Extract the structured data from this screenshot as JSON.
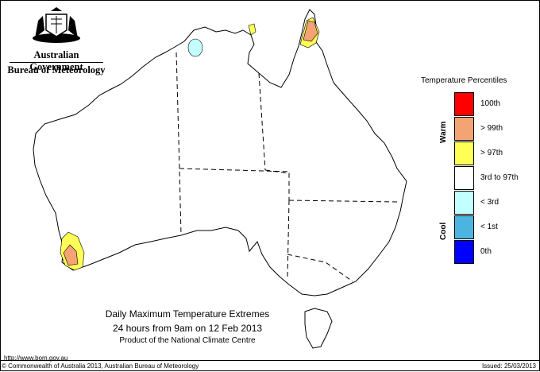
{
  "branding": {
    "line1": "Australian Government",
    "line2": "Bureau of Meteorology"
  },
  "map": {
    "title": "Daily Maximum Temperature Extremes",
    "subtitle": "24 hours from 9am on 12 Feb 2013",
    "product": "Product of the National Climate Centre"
  },
  "legend": {
    "title": "Temperature Percentiles",
    "warm_label": "Warm",
    "cool_label": "Cool",
    "items": [
      {
        "label": "100th",
        "color": "#ff0000"
      },
      {
        "label": "> 99th",
        "color": "#f4a474"
      },
      {
        "label": "> 97th",
        "color": "#ffff55"
      },
      {
        "label": "3rd to 97th",
        "color": "#ffffff"
      },
      {
        "label": "< 3rd",
        "color": "#c4ffff"
      },
      {
        "label": "< 1st",
        "color": "#4cb4e0"
      },
      {
        "label": "0th",
        "color": "#0000ff"
      }
    ]
  },
  "footer": {
    "url": "http://www.bom.gov.au",
    "copyright": "© Commonwealth of Australia 2013, Australian Bureau of Meteorology",
    "issued": "Issued: 25/03/2013"
  }
}
